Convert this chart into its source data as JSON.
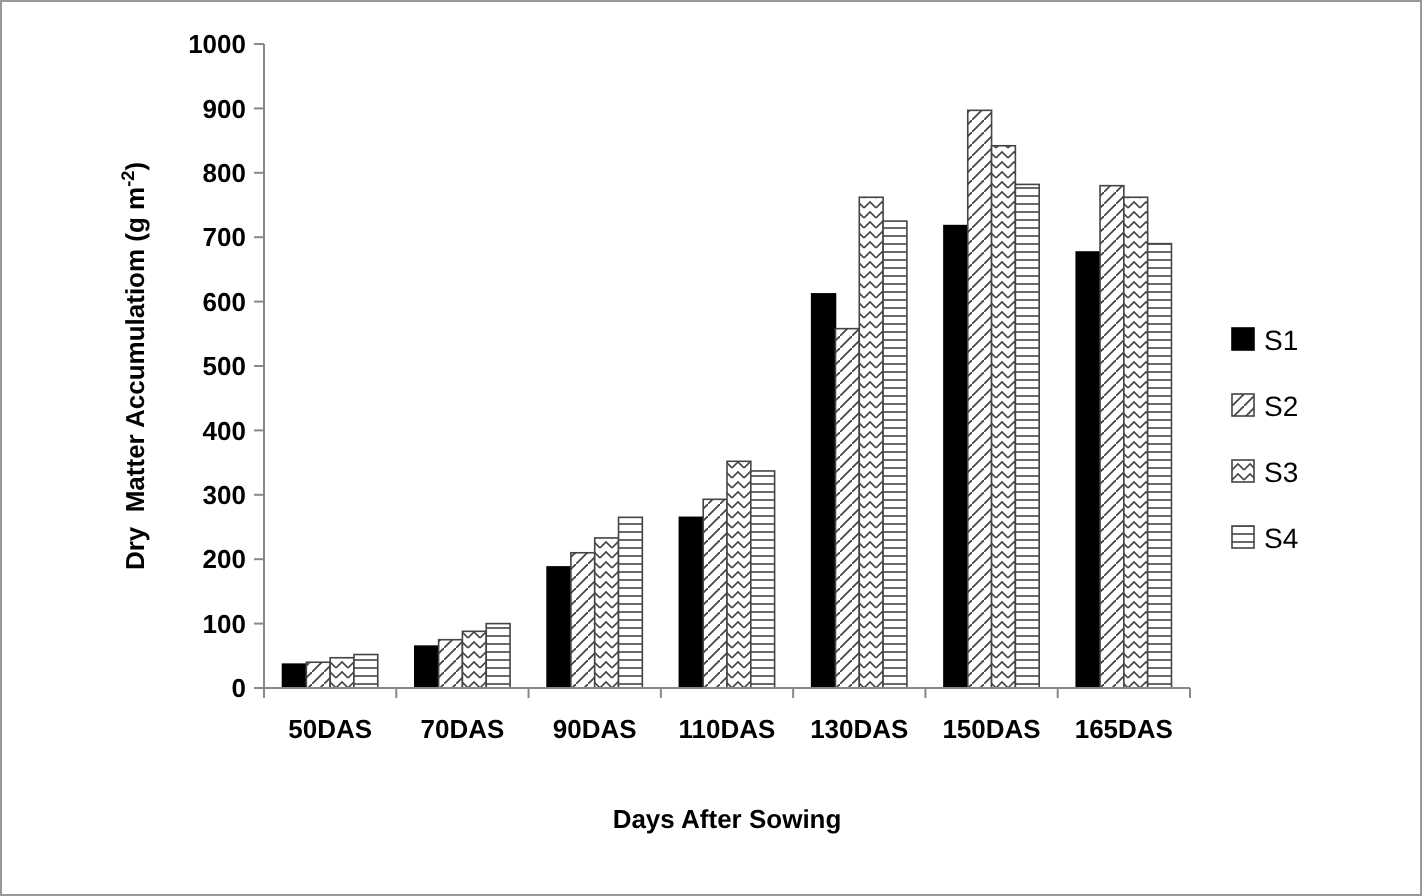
{
  "chart_data": {
    "type": "bar",
    "xlabel": "Days After Sowing",
    "ylabel": "Dry  Matter Accumulatiom (g m$^{-2}$)",
    "categories": [
      "50DAS",
      "70DAS",
      "90DAS",
      "110DAS",
      "130DAS",
      "150DAS",
      "165DAS"
    ],
    "series": [
      {
        "name": "S1",
        "color": "#000000",
        "values": [
          37,
          65,
          188,
          265,
          612,
          718,
          677
        ]
      },
      {
        "name": "S2",
        "color": "#444444",
        "values": [
          40,
          75,
          210,
          293,
          558,
          897,
          780
        ]
      },
      {
        "name": "S3",
        "color": "#444444",
        "values": [
          47,
          88,
          233,
          352,
          762,
          842,
          762
        ]
      },
      {
        "name": "S4",
        "color": "#444444",
        "values": [
          52,
          100,
          265,
          337,
          725,
          782,
          690
        ]
      }
    ],
    "ylim": [
      0,
      1000
    ],
    "yticks": [
      0,
      100,
      200,
      300,
      400,
      500,
      600,
      700,
      800,
      900,
      1000
    ],
    "grid": false,
    "legend": "right"
  }
}
